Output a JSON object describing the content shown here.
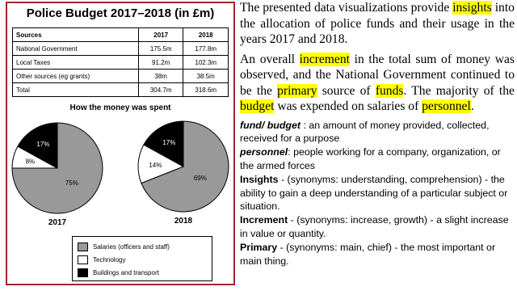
{
  "panel": {
    "title": "Police Budget 2017–2018 (in £m)",
    "table": {
      "header": [
        "Sources",
        "2017",
        "2018"
      ],
      "rows": [
        [
          "National Government",
          "175.5m",
          "177.8m"
        ],
        [
          "Local Taxes",
          "91.2m",
          "102.3m"
        ],
        [
          "Other sources (eg grants)",
          "38m",
          "38.5m"
        ],
        [
          "Total",
          "304.7m",
          "318.6m"
        ]
      ]
    },
    "chart_title": "How the money was spent",
    "pies": [
      {
        "type": "pie",
        "label": "2017",
        "values": [
          75,
          8,
          17
        ],
        "value_labels": [
          "75%",
          "8%",
          "17%"
        ]
      },
      {
        "type": "pie",
        "label": "2018",
        "values": [
          69,
          14,
          17
        ],
        "value_labels": [
          "69%",
          "14%",
          "17%"
        ]
      }
    ],
    "legend": [
      {
        "name": "Salaries (officers and staff)",
        "color": "#999999"
      },
      {
        "name": "Technology",
        "color": "#ffffff"
      },
      {
        "name": "Buildings and transport",
        "color": "#000000"
      }
    ]
  },
  "text": {
    "paragraphs": [
      [
        {
          "text": "The presented data visualizations provide "
        },
        {
          "text": "insights",
          "highlight": true
        },
        {
          "text": " into the allocation of police funds and their usage in the years 2017 and 2018."
        }
      ],
      [
        {
          "text": "An overall "
        },
        {
          "text": "increment",
          "highlight": true
        },
        {
          "text": " in the total sum of money was observed, and the National Government continued to be the "
        },
        {
          "text": "primary",
          "highlight": true
        },
        {
          "text": " source of "
        },
        {
          "text": "funds",
          "highlight": true
        },
        {
          "text": ". The majority of the "
        },
        {
          "text": "budget",
          "highlight": true
        },
        {
          "text": " was expended on salaries of "
        },
        {
          "text": "personnel",
          "highlight": true
        },
        {
          "text": "."
        }
      ]
    ],
    "definitions": [
      {
        "term": "fund/ budget",
        "style": "bold-italic",
        "text": " : an amount of money provided, collected, received for a purpose"
      },
      {
        "term": "personnel",
        "style": "bold-italic",
        "text": ":  people working for a company, organization, or the armed forces"
      },
      {
        "term": "Insights",
        "style": "bold",
        "text": " - (synonyms: understanding, comprehension)  - the ability to gain a deep understanding of a particular subject or situation."
      },
      {
        "term": "Increment",
        "style": "bold",
        "text": " - (synonyms: increase, growth) - a slight increase in value or quantity."
      },
      {
        "term": "Primary",
        "style": "bold",
        "text": " - (synonyms: main, chief) - the most important or main thing."
      }
    ]
  }
}
